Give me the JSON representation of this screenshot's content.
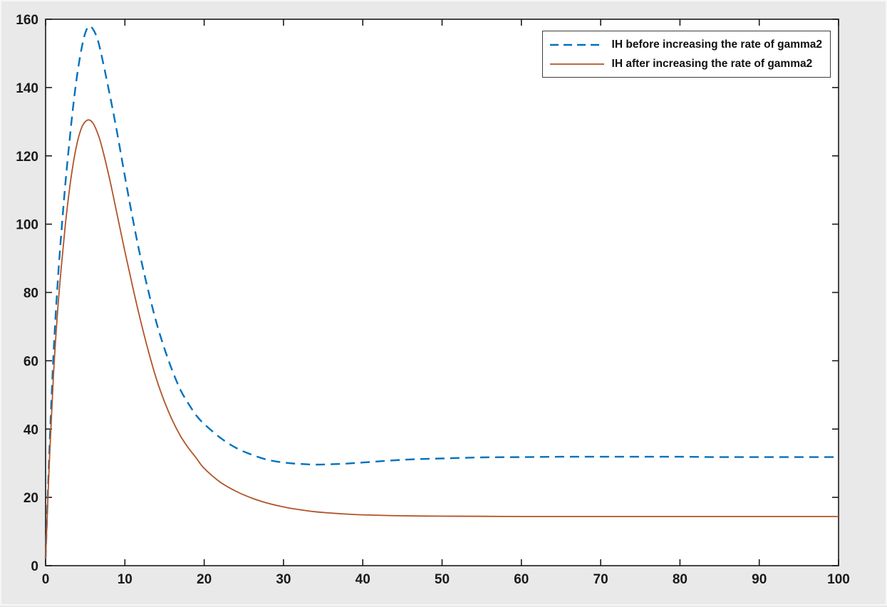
{
  "figure": {
    "background": "#e9e9e9",
    "plot_background": "#ffffff",
    "axis_color": "#1a1a1a"
  },
  "chart_data": {
    "type": "line",
    "title": "",
    "xlabel": "",
    "ylabel": "",
    "grid": false,
    "legend_position": "top-right",
    "xlim": [
      0,
      100
    ],
    "ylim": [
      0,
      160
    ],
    "x_ticks": [
      0,
      10,
      20,
      30,
      40,
      50,
      60,
      70,
      80,
      90,
      100
    ],
    "y_ticks": [
      0,
      20,
      40,
      60,
      80,
      100,
      120,
      140,
      160
    ],
    "x": [
      0,
      0.5,
      1,
      1.5,
      2,
      2.5,
      3,
      3.5,
      4,
      4.5,
      5,
      5.5,
      6,
      6.5,
      7,
      8,
      9,
      10,
      11,
      12,
      13,
      14,
      15,
      16,
      17,
      18,
      19,
      20,
      22,
      24,
      26,
      28,
      30,
      32,
      34,
      36,
      38,
      40,
      45,
      50,
      55,
      60,
      65,
      70,
      75,
      80,
      85,
      90,
      95,
      100
    ],
    "series": [
      {
        "name": "IH before increasing the rate of gamma2",
        "color": "#0072BD",
        "style": "dashed",
        "line_width": 2.4,
        "values": [
          2,
          35,
          62,
          82,
          98,
          112,
          124,
          135,
          144,
          151,
          156,
          158,
          157,
          154.5,
          150,
          139,
          127,
          114,
          101.5,
          90,
          80,
          71,
          63.5,
          57,
          51.5,
          47.5,
          44,
          41.5,
          37.5,
          34.5,
          32.5,
          31,
          30.2,
          29.8,
          29.6,
          29.7,
          29.9,
          30.2,
          31,
          31.4,
          31.7,
          31.8,
          31.9,
          31.9,
          31.9,
          31.9,
          31.8,
          31.8,
          31.8,
          31.8
        ]
      },
      {
        "name": "IH after increasing the rate of gamma2",
        "color": "#B15328",
        "style": "solid",
        "line_width": 1.8,
        "values": [
          2,
          32,
          56,
          74,
          88,
          100,
          110,
          118,
          124,
          128,
          130,
          130.5,
          129.5,
          127,
          123.5,
          114,
          103,
          92,
          81.5,
          71.5,
          62.5,
          54.5,
          48,
          42.5,
          38,
          34.5,
          31.5,
          28.5,
          24.5,
          21.8,
          19.8,
          18.3,
          17.2,
          16.4,
          15.8,
          15.4,
          15.1,
          14.9,
          14.6,
          14.5,
          14.45,
          14.4,
          14.4,
          14.4,
          14.4,
          14.4,
          14.4,
          14.4,
          14.4,
          14.4
        ]
      }
    ]
  }
}
